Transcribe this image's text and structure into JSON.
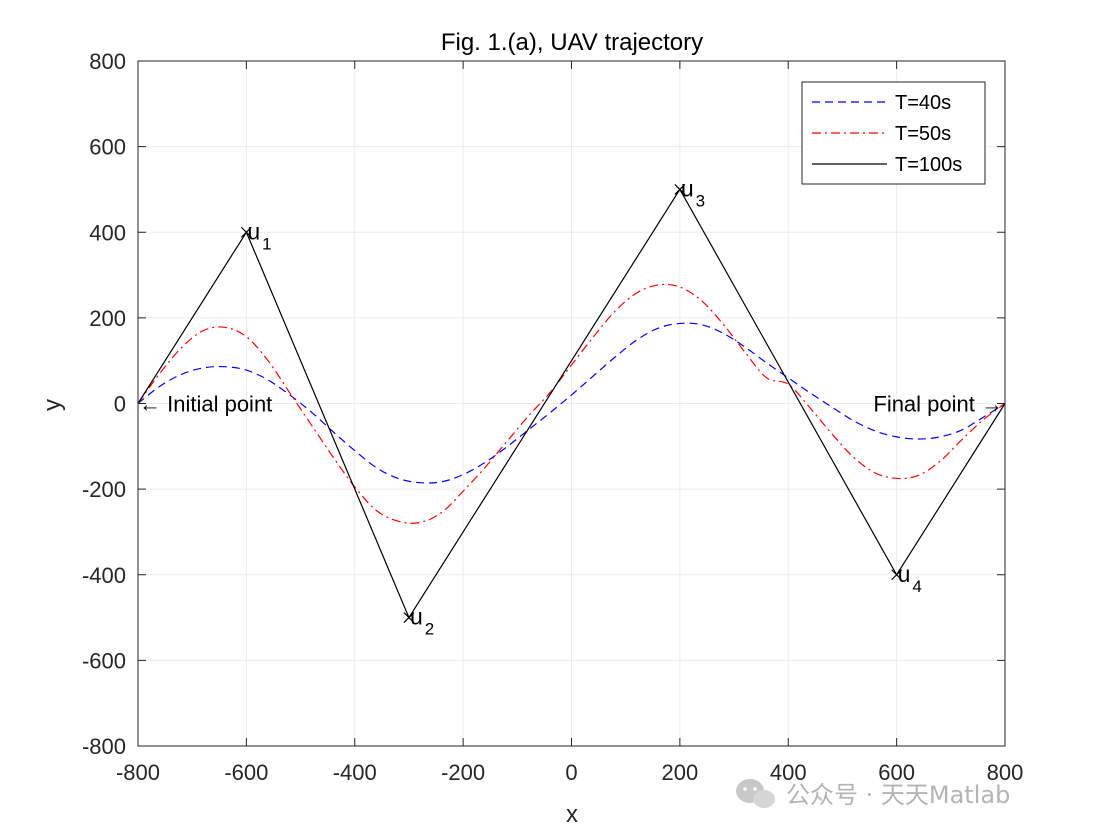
{
  "chart_data": {
    "type": "line",
    "title": "Fig. 1.(a), UAV trajectory",
    "xlabel": "x",
    "ylabel": "y",
    "xlim": [
      -800,
      800
    ],
    "ylim": [
      -800,
      800
    ],
    "xticks": [
      -800,
      -600,
      -400,
      -200,
      0,
      200,
      400,
      600,
      800
    ],
    "yticks": [
      -800,
      -600,
      -400,
      -200,
      0,
      200,
      400,
      600,
      800
    ],
    "xtick_labels": [
      "-800",
      "-600",
      "-400",
      "-200",
      "0",
      "200",
      "400",
      "600",
      "800"
    ],
    "ytick_labels": [
      "-800",
      "-600",
      "-400",
      "-200",
      "0",
      "200",
      "400",
      "600",
      "800"
    ],
    "grid": true,
    "legend_position": "top-right",
    "series": [
      {
        "name": "T=40s",
        "color": "#0000ff",
        "style": "dashed",
        "x": [
          -800,
          -760,
          -720,
          -680,
          -640,
          -600,
          -560,
          -520,
          -480,
          -440,
          -400,
          -360,
          -320,
          -280,
          -240,
          -200,
          -160,
          -120,
          -80,
          -40,
          0,
          40,
          80,
          120,
          160,
          200,
          240,
          280,
          320,
          360,
          400,
          440,
          480,
          520,
          560,
          600,
          640,
          680,
          720,
          760,
          800
        ],
        "y": [
          0,
          40,
          68,
          83,
          86,
          78,
          55,
          20,
          -20,
          -66,
          -110,
          -150,
          -175,
          -185,
          -183,
          -166,
          -138,
          -102,
          -62,
          -22,
          20,
          64,
          108,
          148,
          176,
          187,
          184,
          164,
          132,
          95,
          60,
          25,
          -8,
          -40,
          -64,
          -78,
          -83,
          -78,
          -62,
          -32,
          0
        ]
      },
      {
        "name": "T=50s",
        "color": "#ff0000",
        "style": "dash-dot",
        "x": [
          -800,
          -760,
          -720,
          -680,
          -640,
          -600,
          -560,
          -520,
          -480,
          -440,
          -400,
          -360,
          -320,
          -280,
          -240,
          -200,
          -160,
          -120,
          -80,
          -40,
          0,
          40,
          80,
          120,
          160,
          200,
          240,
          280,
          320,
          360,
          400,
          440,
          480,
          520,
          560,
          600,
          640,
          680,
          720,
          760,
          800
        ],
        "y": [
          0,
          70,
          130,
          170,
          178,
          156,
          100,
          25,
          -50,
          -125,
          -195,
          -250,
          -275,
          -278,
          -255,
          -205,
          -150,
          -90,
          -30,
          25,
          90,
          155,
          215,
          258,
          277,
          272,
          240,
          185,
          120,
          60,
          45,
          -10,
          -70,
          -125,
          -162,
          -175,
          -168,
          -135,
          -85,
          -38,
          0
        ]
      },
      {
        "name": "T=100s",
        "color": "#000000",
        "style": "solid",
        "x": [
          -800,
          -600,
          -300,
          200,
          600,
          800
        ],
        "y": [
          0,
          400,
          -500,
          500,
          -400,
          0
        ]
      }
    ],
    "waypoints": [
      {
        "x": -600,
        "y": 400,
        "label": "u",
        "sub": "1"
      },
      {
        "x": -300,
        "y": -500,
        "label": "u",
        "sub": "2"
      },
      {
        "x": 200,
        "y": 500,
        "label": "u",
        "sub": "3"
      },
      {
        "x": 600,
        "y": -400,
        "label": "u",
        "sub": "4"
      }
    ],
    "annotations": [
      {
        "text": "← Initial point",
        "x": -800,
        "y": 0,
        "anchor": "left"
      },
      {
        "text": "Final point →",
        "x": 800,
        "y": 0,
        "anchor": "right"
      }
    ]
  },
  "watermark": {
    "text": "公众号 · 天天Matlab",
    "icon": "wechat-icon"
  }
}
